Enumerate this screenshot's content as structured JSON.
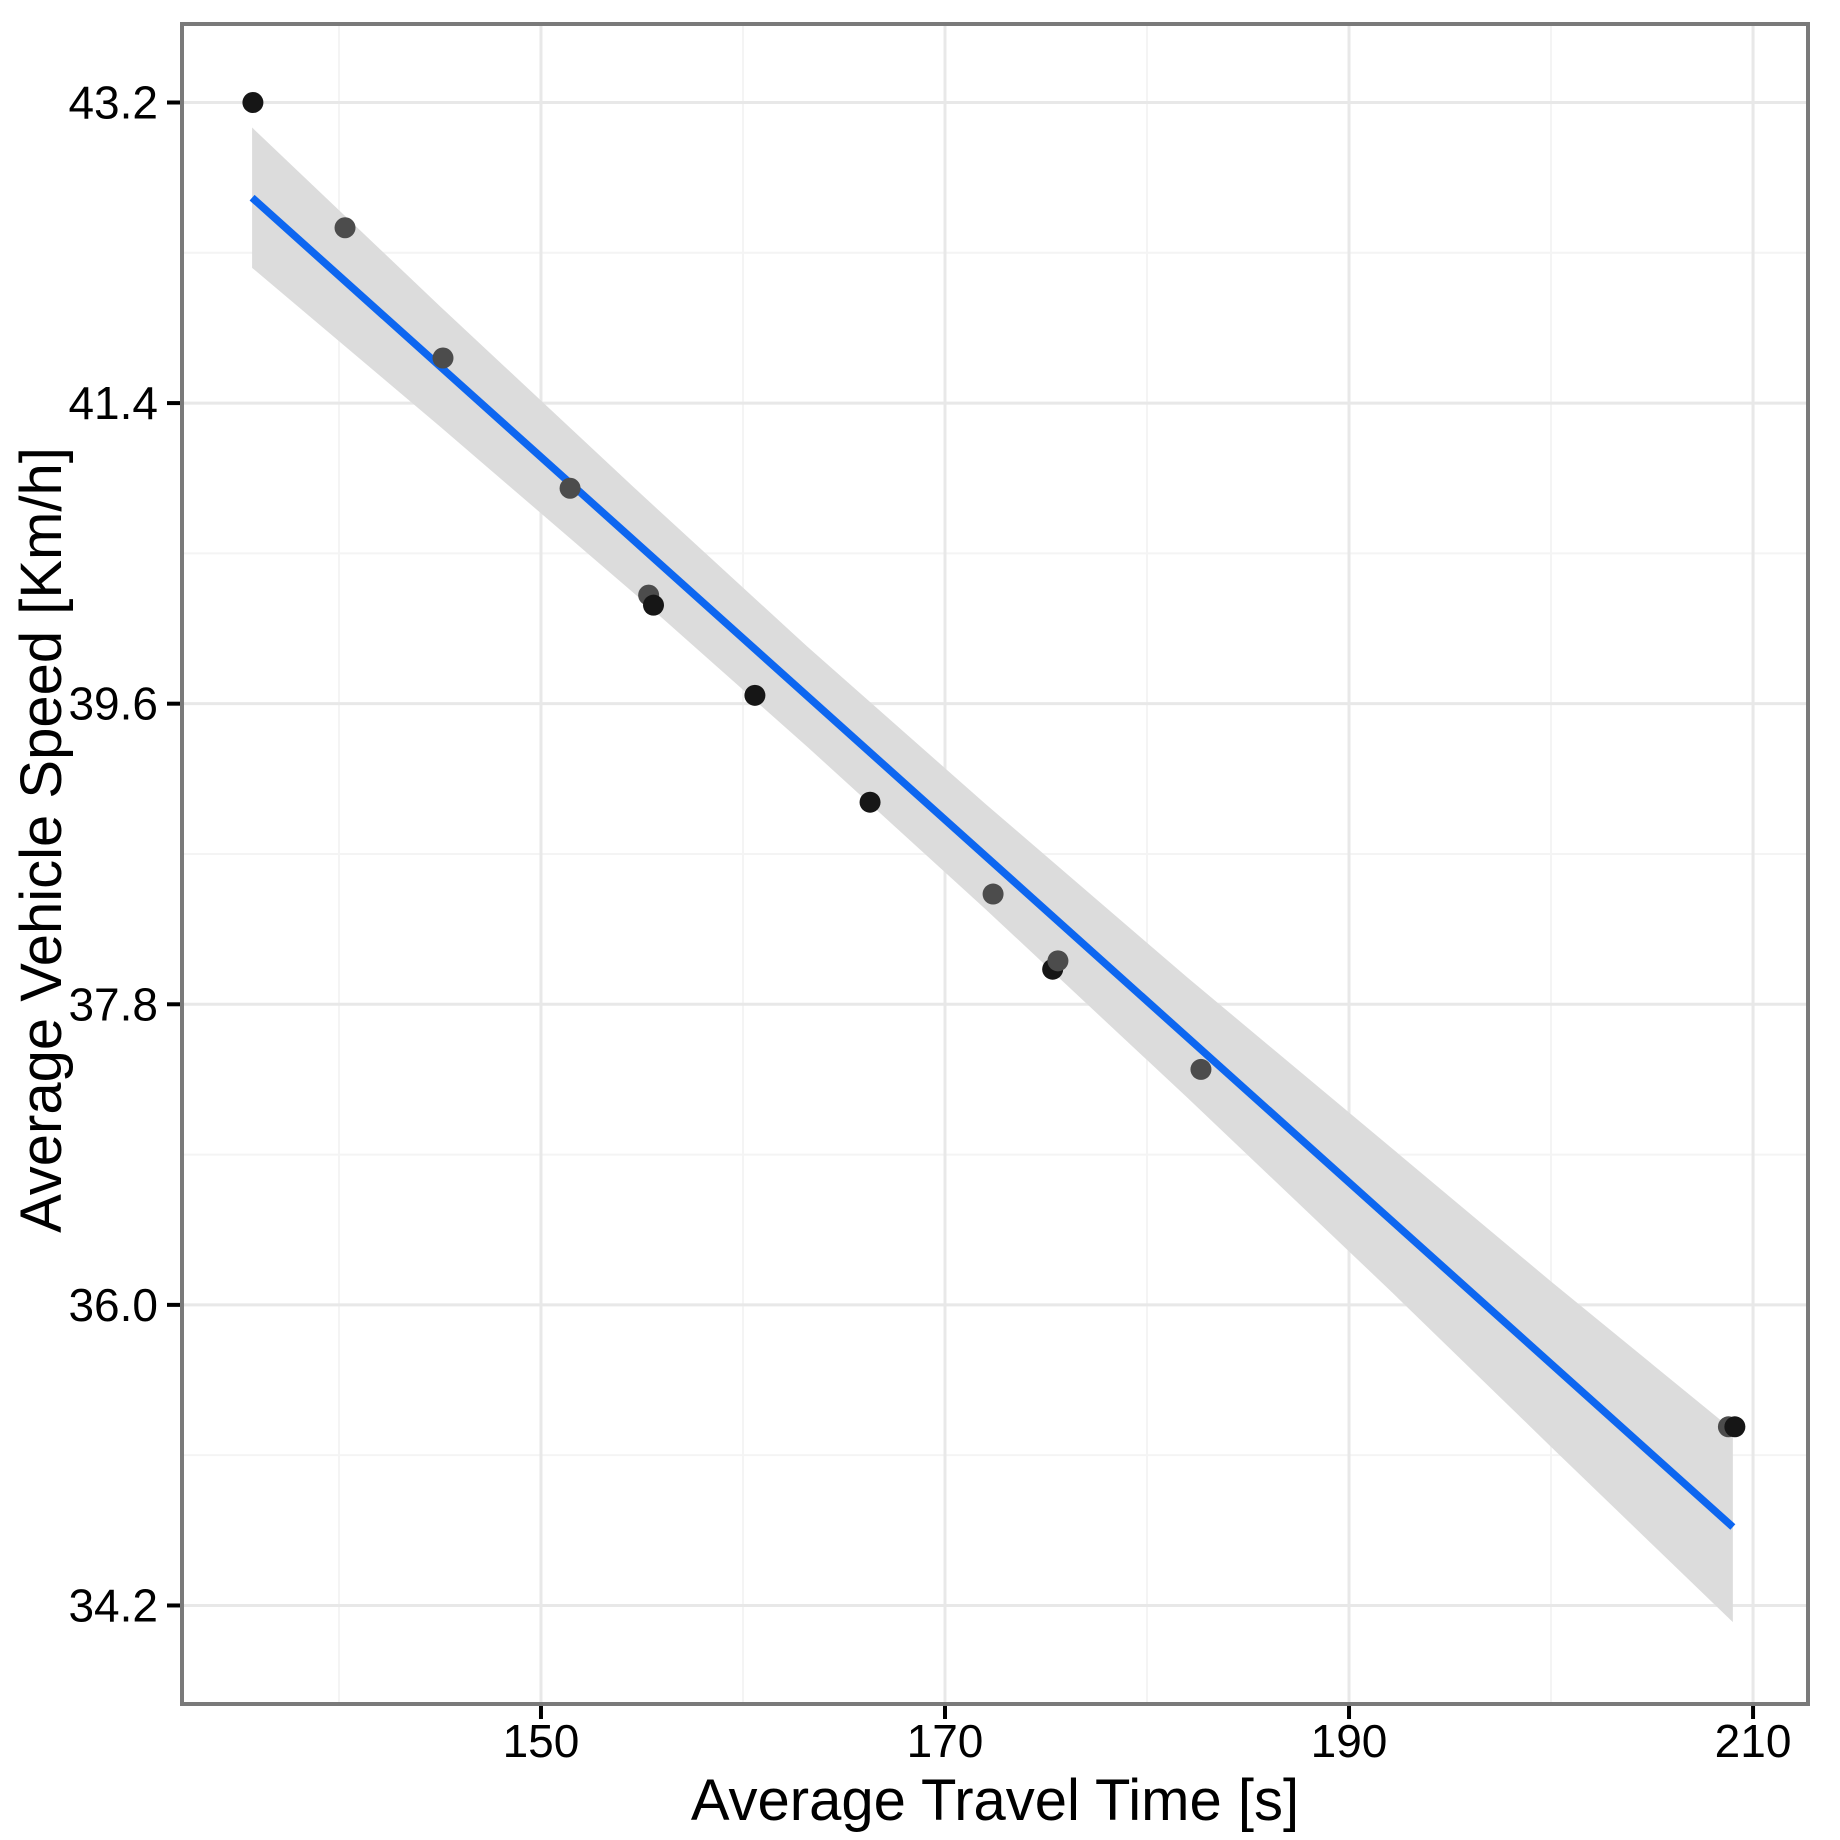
{
  "chart_data": {
    "type": "scatter",
    "title": "",
    "xlabel": "Average Travel Time [s]",
    "ylabel": "Average Vehicle Speed [Km/h]",
    "x_range": [
      132.23,
      212.72
    ],
    "y_range": [
      33.61,
      43.67
    ],
    "grid": "major-and-minor",
    "legend_position": "none",
    "x_ticks": [
      {
        "value": 150,
        "label": "150"
      },
      {
        "value": 170,
        "label": "170"
      },
      {
        "value": 190,
        "label": "190"
      },
      {
        "value": 210,
        "label": "210"
      }
    ],
    "x_minor_ticks": [
      140,
      160,
      180,
      200
    ],
    "y_ticks": [
      {
        "value": 43.2,
        "label": "43.2"
      },
      {
        "value": 41.4,
        "label": "41.4"
      },
      {
        "value": 39.6,
        "label": "39.6"
      },
      {
        "value": 37.8,
        "label": "37.8"
      },
      {
        "value": 36.0,
        "label": "36.0"
      },
      {
        "value": 34.2,
        "label": "34.2"
      }
    ],
    "y_minor_ticks": [
      42.3,
      40.5,
      38.7,
      36.9,
      35.1
    ],
    "points": [
      {
        "x": 135.74,
        "y": 43.2,
        "shade": "black"
      },
      {
        "x": 140.3,
        "y": 42.45,
        "shade": "gray"
      },
      {
        "x": 145.15,
        "y": 41.67,
        "shade": "gray"
      },
      {
        "x": 151.44,
        "y": 40.89,
        "shade": "gray"
      },
      {
        "x": 155.33,
        "y": 40.25,
        "shade": "gray"
      },
      {
        "x": 155.57,
        "y": 40.19,
        "shade": "black"
      },
      {
        "x": 160.59,
        "y": 39.65,
        "shade": "black"
      },
      {
        "x": 166.29,
        "y": 39.01,
        "shade": "black"
      },
      {
        "x": 172.38,
        "y": 38.46,
        "shade": "gray"
      },
      {
        "x": 175.33,
        "y": 38.01,
        "shade": "black"
      },
      {
        "x": 175.59,
        "y": 38.06,
        "shade": "gray"
      },
      {
        "x": 182.67,
        "y": 37.41,
        "shade": "gray"
      },
      {
        "x": 208.78,
        "y": 35.27,
        "shade": "gray"
      },
      {
        "x": 209.1,
        "y": 35.27,
        "shade": "black"
      }
    ],
    "regression_line": {
      "x1": 135.7,
      "y1": 42.63,
      "x2": 209.0,
      "y2": 34.67
    },
    "confidence_band": [
      {
        "x": 135.7,
        "lo": 42.21,
        "hi": 43.05
      },
      {
        "x": 145.0,
        "lo": 41.26,
        "hi": 41.98
      },
      {
        "x": 155.0,
        "lo": 40.22,
        "hi": 40.85
      },
      {
        "x": 163.2,
        "lo": 39.34,
        "hi": 39.94
      },
      {
        "x": 172.0,
        "lo": 38.37,
        "hi": 39.0
      },
      {
        "x": 182.0,
        "lo": 37.24,
        "hi": 37.96
      },
      {
        "x": 192.0,
        "lo": 36.09,
        "hi": 36.95
      },
      {
        "x": 200.0,
        "lo": 35.15,
        "hi": 36.14
      },
      {
        "x": 209.0,
        "lo": 34.1,
        "hi": 35.25
      }
    ],
    "colors": {
      "regression_line": "#0d66f0",
      "confidence_band": "#dcdcdc",
      "point_gray": "#4c4c4c",
      "point_black": "#161616",
      "grid_major": "#e8e8e8",
      "grid_minor": "#f4f4f4",
      "panel_border": "#7a7a7a",
      "tick_mark": "#000000",
      "tick_label": "#000000",
      "background": "#ffffff"
    }
  }
}
